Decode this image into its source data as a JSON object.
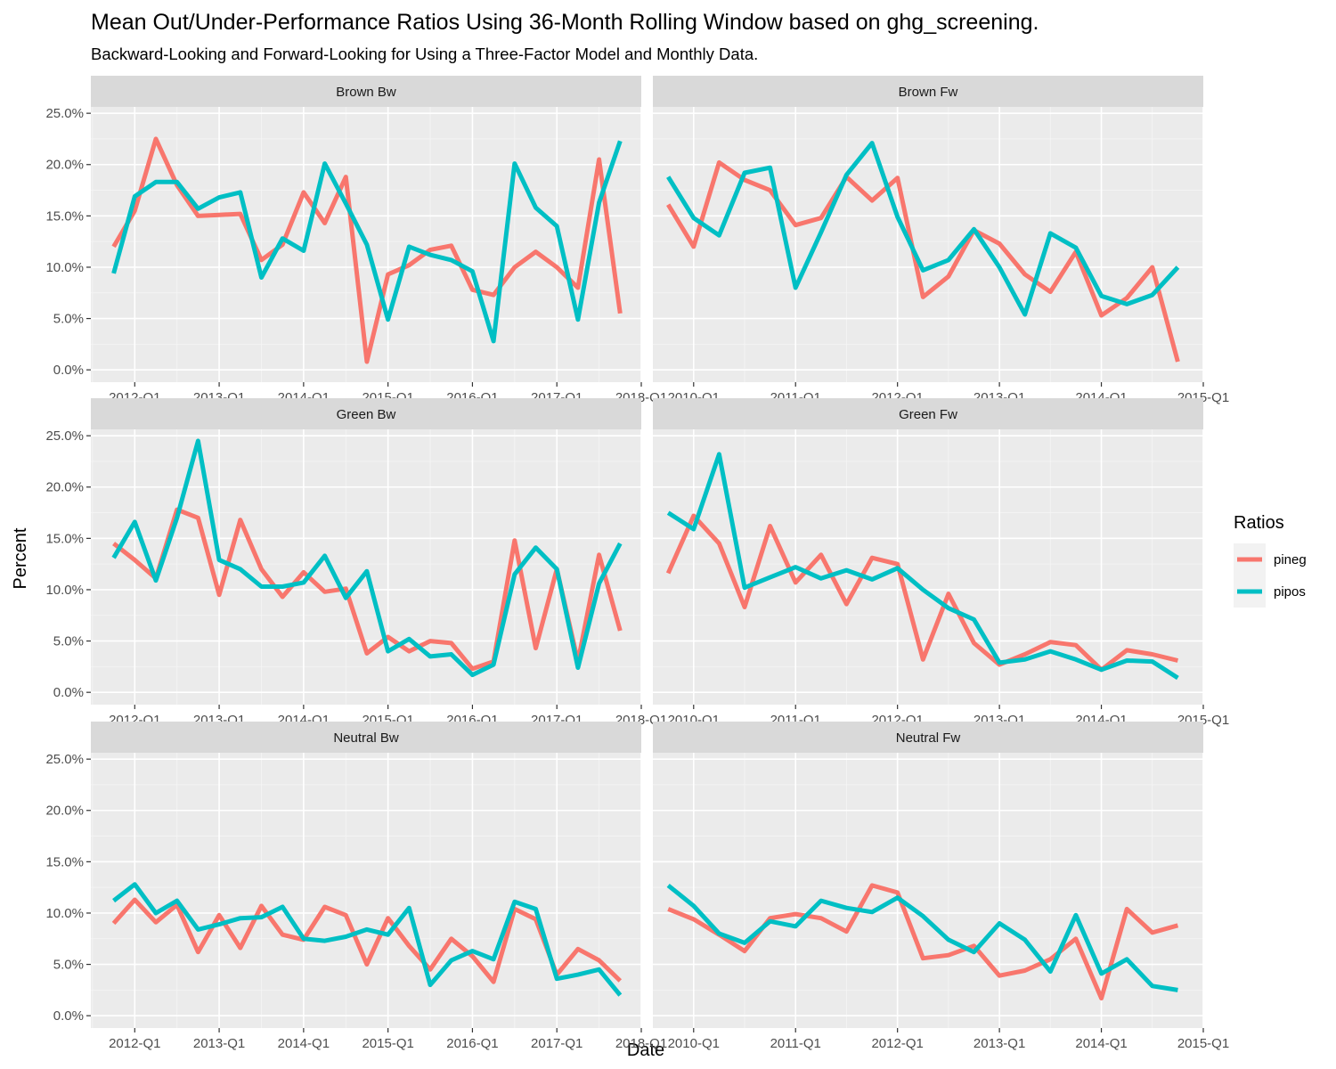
{
  "chart_data": {
    "type": "line",
    "title": "Mean Out/Under-Performance Ratios Using 36-Month Rolling Window based on ghg_screening.",
    "subtitle": "Backward-Looking and Forward-Looking for Using a Three-Factor Model and Monthly Data.",
    "xlabel": "Date",
    "ylabel": "Percent",
    "legend": {
      "title": "Ratios",
      "position": "right"
    },
    "series_colors": {
      "pineg": "#F8766D",
      "pipos": "#00BFC4"
    },
    "ylim": [
      0,
      0.25
    ],
    "y_ticks": [
      0,
      0.05,
      0.1,
      0.15,
      0.2,
      0.25
    ],
    "y_tick_labels": [
      "0.0%",
      "5.0%",
      "10.0%",
      "15.0%",
      "20.0%",
      "25.0%"
    ],
    "bw_x_range": [
      2011.48,
      2018.0
    ],
    "fw_x_range": [
      2009.6,
      2015.0
    ],
    "bw_x_ticks": [
      2012,
      2013,
      2014,
      2015,
      2016,
      2017,
      2018
    ],
    "bw_x_tick_labels": [
      "2012-Q1",
      "2013-Q1",
      "2014-Q1",
      "2015-Q1",
      "2016-Q1",
      "2017-Q1",
      "2018-Q1"
    ],
    "fw_x_ticks": [
      2010,
      2011,
      2012,
      2013,
      2014,
      2015
    ],
    "fw_x_tick_labels": [
      "2010-Q1",
      "2011-Q1",
      "2012-Q1",
      "2013-Q1",
      "2014-Q1",
      "2015-Q1"
    ],
    "bw_x": [
      2011.75,
      2012.0,
      2012.25,
      2012.5,
      2012.75,
      2013.0,
      2013.25,
      2013.5,
      2013.75,
      2014.0,
      2014.25,
      2014.5,
      2014.75,
      2015.0,
      2015.25,
      2015.5,
      2015.75,
      2016.0,
      2016.25,
      2016.5,
      2016.75,
      2017.0,
      2017.25,
      2017.5,
      2017.75
    ],
    "fw_x": [
      2009.75,
      2010.0,
      2010.25,
      2010.5,
      2010.75,
      2011.0,
      2011.25,
      2011.5,
      2011.75,
      2012.0,
      2012.25,
      2012.5,
      2012.75,
      2013.0,
      2013.25,
      2013.5,
      2013.75,
      2014.0,
      2014.25,
      2014.5,
      2014.75
    ],
    "panels": [
      {
        "label": "Brown Bw",
        "axis": "bw",
        "series": [
          {
            "name": "pineg",
            "values": [
              0.12,
              0.155,
              0.225,
              0.18,
              0.15,
              0.151,
              0.152,
              0.107,
              0.122,
              0.173,
              0.143,
              0.188,
              0.008,
              0.093,
              0.102,
              0.117,
              0.121,
              0.078,
              0.073,
              0.1,
              0.115,
              0.1,
              0.08,
              0.205,
              0.055
            ]
          },
          {
            "name": "pipos",
            "values": [
              0.094,
              0.169,
              0.183,
              0.183,
              0.157,
              0.168,
              0.173,
              0.09,
              0.128,
              0.116,
              0.201,
              0.162,
              0.122,
              0.049,
              0.12,
              0.112,
              0.107,
              0.096,
              0.028,
              0.201,
              0.158,
              0.14,
              0.049,
              0.163,
              0.223
            ]
          }
        ]
      },
      {
        "label": "Brown Fw",
        "axis": "fw",
        "series": [
          {
            "name": "pineg",
            "values": [
              0.161,
              0.12,
              0.202,
              0.185,
              0.175,
              0.141,
              0.148,
              0.188,
              0.165,
              0.187,
              0.071,
              0.091,
              0.136,
              0.123,
              0.093,
              0.076,
              0.115,
              0.053,
              0.07,
              0.1,
              0.008
            ]
          },
          {
            "name": "pipos",
            "values": [
              0.188,
              0.148,
              0.131,
              0.192,
              0.197,
              0.08,
              0.134,
              0.19,
              0.221,
              0.149,
              0.097,
              0.107,
              0.137,
              0.1,
              0.054,
              0.133,
              0.119,
              0.072,
              0.064,
              0.073,
              0.1
            ]
          }
        ]
      },
      {
        "label": "Green Bw",
        "axis": "bw",
        "series": [
          {
            "name": "pineg",
            "values": [
              0.145,
              0.129,
              0.111,
              0.178,
              0.17,
              0.095,
              0.168,
              0.12,
              0.093,
              0.117,
              0.098,
              0.101,
              0.038,
              0.054,
              0.04,
              0.05,
              0.048,
              0.023,
              0.03,
              0.148,
              0.043,
              0.12,
              0.03,
              0.134,
              0.06
            ]
          },
          {
            "name": "pipos",
            "values": [
              0.131,
              0.166,
              0.109,
              0.17,
              0.245,
              0.129,
              0.12,
              0.103,
              0.103,
              0.107,
              0.133,
              0.092,
              0.118,
              0.04,
              0.052,
              0.035,
              0.037,
              0.017,
              0.027,
              0.115,
              0.141,
              0.12,
              0.024,
              0.106,
              0.145
            ]
          }
        ]
      },
      {
        "label": "Green Fw",
        "axis": "fw",
        "series": [
          {
            "name": "pineg",
            "values": [
              0.116,
              0.172,
              0.145,
              0.083,
              0.162,
              0.107,
              0.134,
              0.086,
              0.131,
              0.125,
              0.032,
              0.096,
              0.048,
              0.027,
              0.037,
              0.049,
              0.046,
              0.022,
              0.041,
              0.037,
              0.031
            ]
          },
          {
            "name": "pipos",
            "values": [
              0.175,
              0.159,
              0.232,
              0.102,
              0.112,
              0.122,
              0.111,
              0.119,
              0.11,
              0.121,
              0.1,
              0.082,
              0.071,
              0.029,
              0.032,
              0.04,
              0.032,
              0.022,
              0.031,
              0.03,
              0.014
            ]
          }
        ]
      },
      {
        "label": "Neutral Bw",
        "axis": "bw",
        "series": [
          {
            "name": "pineg",
            "values": [
              0.09,
              0.113,
              0.091,
              0.108,
              0.062,
              0.098,
              0.066,
              0.107,
              0.079,
              0.074,
              0.106,
              0.098,
              0.05,
              0.095,
              0.068,
              0.045,
              0.075,
              0.058,
              0.033,
              0.104,
              0.094,
              0.04,
              0.065,
              0.054,
              0.034
            ]
          },
          {
            "name": "pipos",
            "values": [
              0.112,
              0.128,
              0.1,
              0.112,
              0.084,
              0.089,
              0.095,
              0.096,
              0.106,
              0.075,
              0.073,
              0.077,
              0.084,
              0.079,
              0.105,
              0.03,
              0.054,
              0.063,
              0.055,
              0.111,
              0.104,
              0.036,
              0.04,
              0.045,
              0.02
            ]
          }
        ]
      },
      {
        "label": "Neutral Fw",
        "axis": "fw",
        "series": [
          {
            "name": "pineg",
            "values": [
              0.104,
              0.094,
              0.079,
              0.063,
              0.095,
              0.099,
              0.095,
              0.082,
              0.127,
              0.12,
              0.056,
              0.059,
              0.068,
              0.039,
              0.044,
              0.055,
              0.075,
              0.017,
              0.104,
              0.081,
              0.088
            ]
          },
          {
            "name": "pipos",
            "values": [
              0.127,
              0.107,
              0.08,
              0.071,
              0.092,
              0.087,
              0.112,
              0.105,
              0.101,
              0.115,
              0.097,
              0.074,
              0.062,
              0.09,
              0.074,
              0.043,
              0.098,
              0.041,
              0.055,
              0.029,
              0.025
            ]
          }
        ]
      }
    ]
  }
}
